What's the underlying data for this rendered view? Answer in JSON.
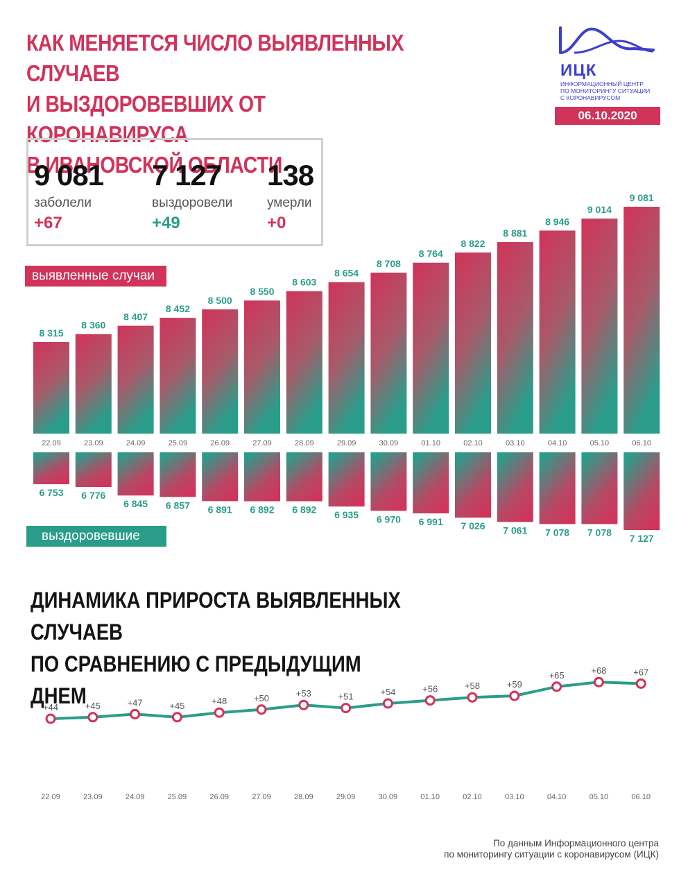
{
  "title": {
    "line1": "КАК МЕНЯЕТСЯ ЧИСЛО ВЫЯВЛЕННЫХ СЛУЧАЕВ",
    "line2": "И ВЫЗДОРОВЕВШИХ ОТ КОРОНАВИРУСА",
    "line3": "В ИВАНОВСКОЙ ОБЛАСТИ"
  },
  "logo": {
    "abbr": "ИЦК",
    "line1": "ИНФОРМАЦИОННЫЙ ЦЕНТР",
    "line2": "ПО МОНИТОРИНГУ СИТУАЦИИ",
    "line3": "С КОРОНАВИРУСОМ",
    "icon": "wave-curve-logo-icon"
  },
  "date": "06.10.2020",
  "stats": {
    "cases": {
      "value": "9 081",
      "label": "заболели",
      "delta": "+67"
    },
    "recovered": {
      "value": "7 127",
      "label": "выздоровели",
      "delta": "+49"
    },
    "deaths": {
      "value": "138",
      "label": "умерли",
      "delta": "+0"
    }
  },
  "labels": {
    "cases": "выявленные случаи",
    "recovered": "выздоровевшие"
  },
  "subtitle": {
    "line1": "ДИНАМИКА ПРИРОСТА ВЫЯВЛЕННЫХ СЛУЧАЕВ",
    "line2": "ПО СРАВНЕНИЮ С ПРЕДЫДУЩИМ ДНЕМ"
  },
  "source": {
    "line1": "По данным Информационного центра",
    "line2": "по мониторингу ситуации с коронавирусом (ИЦК)"
  },
  "colors": {
    "red": "#d1335a",
    "green": "#2a9d8a",
    "blue": "#3d3fcf"
  },
  "chart_data": [
    {
      "type": "bar",
      "title": "",
      "categories": [
        "22.09",
        "23.09",
        "24.09",
        "25.09",
        "26.09",
        "27.09",
        "28.09",
        "29.09",
        "30.09",
        "01.10",
        "02.10",
        "03.10",
        "04.10",
        "05.10",
        "06.10"
      ],
      "series": [
        {
          "name": "выявленные случаи",
          "values": [
            8315,
            8360,
            8407,
            8452,
            8500,
            8550,
            8603,
            8654,
            8708,
            8764,
            8822,
            8881,
            8946,
            9014,
            9081
          ],
          "labels": [
            "8 315",
            "8 360",
            "8 407",
            "8 452",
            "8 500",
            "8 550",
            "8 603",
            "8 654",
            "8 708",
            "8 764",
            "8 822",
            "8 881",
            "8 946",
            "9 014",
            "9 081"
          ]
        },
        {
          "name": "выздоровевшие",
          "values": [
            6753,
            6776,
            6845,
            6857,
            6891,
            6892,
            6892,
            6935,
            6970,
            6991,
            7026,
            7061,
            7078,
            7078,
            7127
          ],
          "labels": [
            "6 753",
            "6 776",
            "6 845",
            "6 857",
            "6 891",
            "6 892",
            "6 892",
            "6 935",
            "6 970",
            "6 991",
            "7 026",
            "7 061",
            "7 078",
            "7 078",
            "7 127"
          ]
        }
      ],
      "legend": "left"
    },
    {
      "type": "line",
      "title": "",
      "categories": [
        "22.09",
        "23.09",
        "24.09",
        "25.09",
        "26.09",
        "27.09",
        "28.09",
        "29.09",
        "30.09",
        "01.10",
        "02.10",
        "03.10",
        "04.10",
        "05.10",
        "06.10"
      ],
      "values": [
        44,
        45,
        47,
        45,
        48,
        50,
        53,
        51,
        54,
        56,
        58,
        59,
        65,
        68,
        67
      ],
      "labels": [
        "+44",
        "+45",
        "+47",
        "+45",
        "+48",
        "+50",
        "+53",
        "+51",
        "+54",
        "+56",
        "+58",
        "+59",
        "+65",
        "+68",
        "+67"
      ]
    }
  ]
}
